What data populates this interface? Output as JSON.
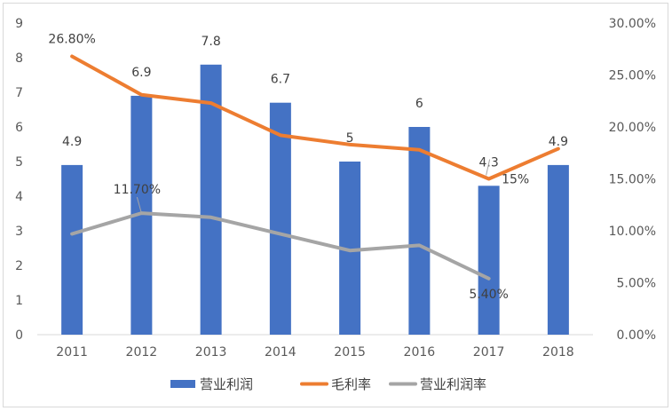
{
  "chart_data": {
    "type": "bar+line",
    "categories": [
      "2011",
      "2012",
      "2013",
      "2014",
      "2015",
      "2016",
      "2017",
      "2018"
    ],
    "series": [
      {
        "name": "营业利润",
        "type": "bar",
        "axis": "left",
        "color": "#4472c4",
        "values": [
          4.9,
          6.9,
          7.8,
          6.7,
          5,
          6,
          4.3,
          4.9
        ],
        "labels": [
          "4.9",
          "6.9",
          "7.8",
          "6.7",
          "5",
          "6",
          "4.3",
          "4.9"
        ]
      },
      {
        "name": "毛利率",
        "type": "line",
        "axis": "right",
        "color": "#ed7d31",
        "values": [
          26.8,
          23.1,
          22.3,
          19.2,
          18.3,
          17.8,
          15.0,
          17.9
        ],
        "labels": [
          "26.80%",
          "",
          "",
          "",
          "",
          "",
          "15%",
          ""
        ]
      },
      {
        "name": "营业利润率",
        "type": "line",
        "axis": "right",
        "color": "#a5a5a5",
        "values": [
          9.7,
          11.7,
          11.3,
          9.7,
          8.1,
          8.6,
          5.4,
          null
        ],
        "labels": [
          "",
          "11.70%",
          "",
          "",
          "",
          "",
          "5.40%",
          ""
        ]
      }
    ],
    "y_left": {
      "min": 0,
      "max": 9,
      "ticks": [
        "0",
        "1",
        "2",
        "3",
        "4",
        "5",
        "6",
        "7",
        "8",
        "9"
      ]
    },
    "y_right": {
      "min": 0,
      "max": 30,
      "ticks": [
        "0.00%",
        "5.00%",
        "10.00%",
        "15.00%",
        "20.00%",
        "25.00%",
        "30.00%"
      ]
    },
    "legend_position": "bottom",
    "grid": false
  }
}
